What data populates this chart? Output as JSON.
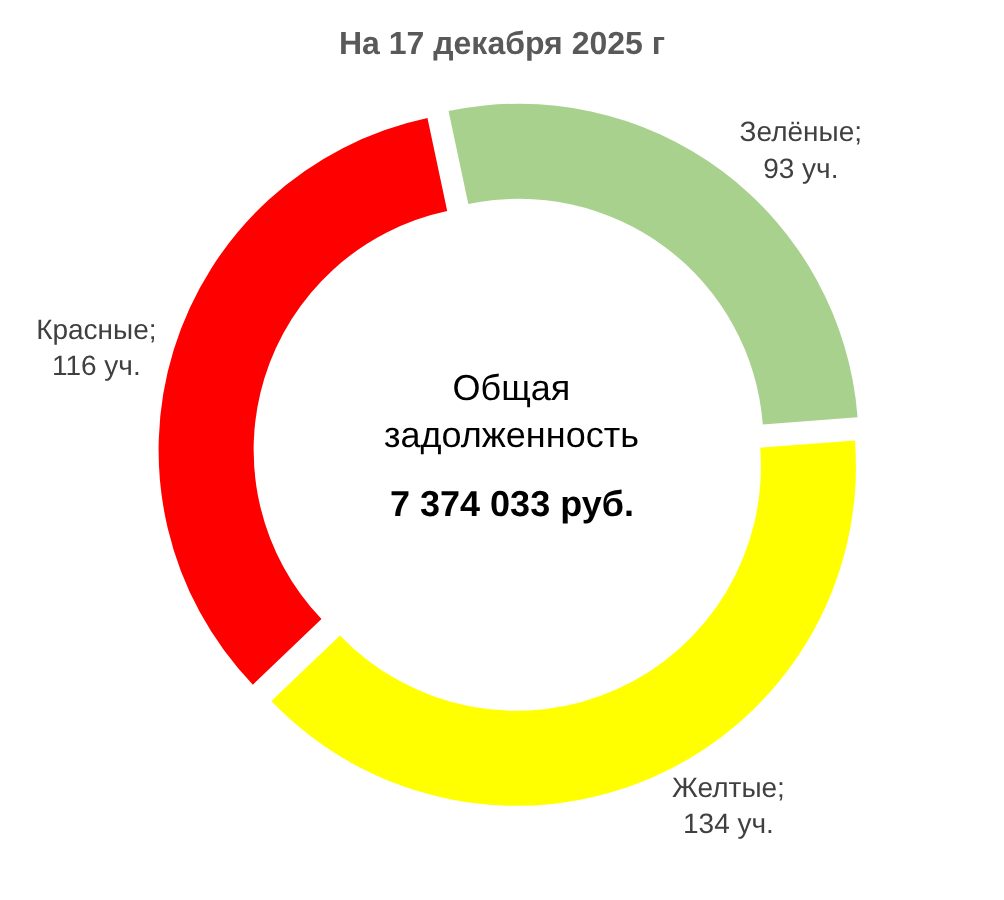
{
  "chart_data": {
    "type": "donut",
    "title": "На 17 декабря 2025 г",
    "categories": [
      "Зелёные",
      "Желтые",
      "Красные"
    ],
    "values": [
      93,
      134,
      116
    ],
    "colors": [
      "#a9d18e",
      "#ffff00",
      "#ff0000"
    ],
    "value_labels": [
      "; 93 уч.",
      "; 134 уч.",
      "; 116 уч."
    ],
    "annotations": [
      "Общая задолженность",
      "7 374 033 руб."
    ],
    "legend": false
  }
}
